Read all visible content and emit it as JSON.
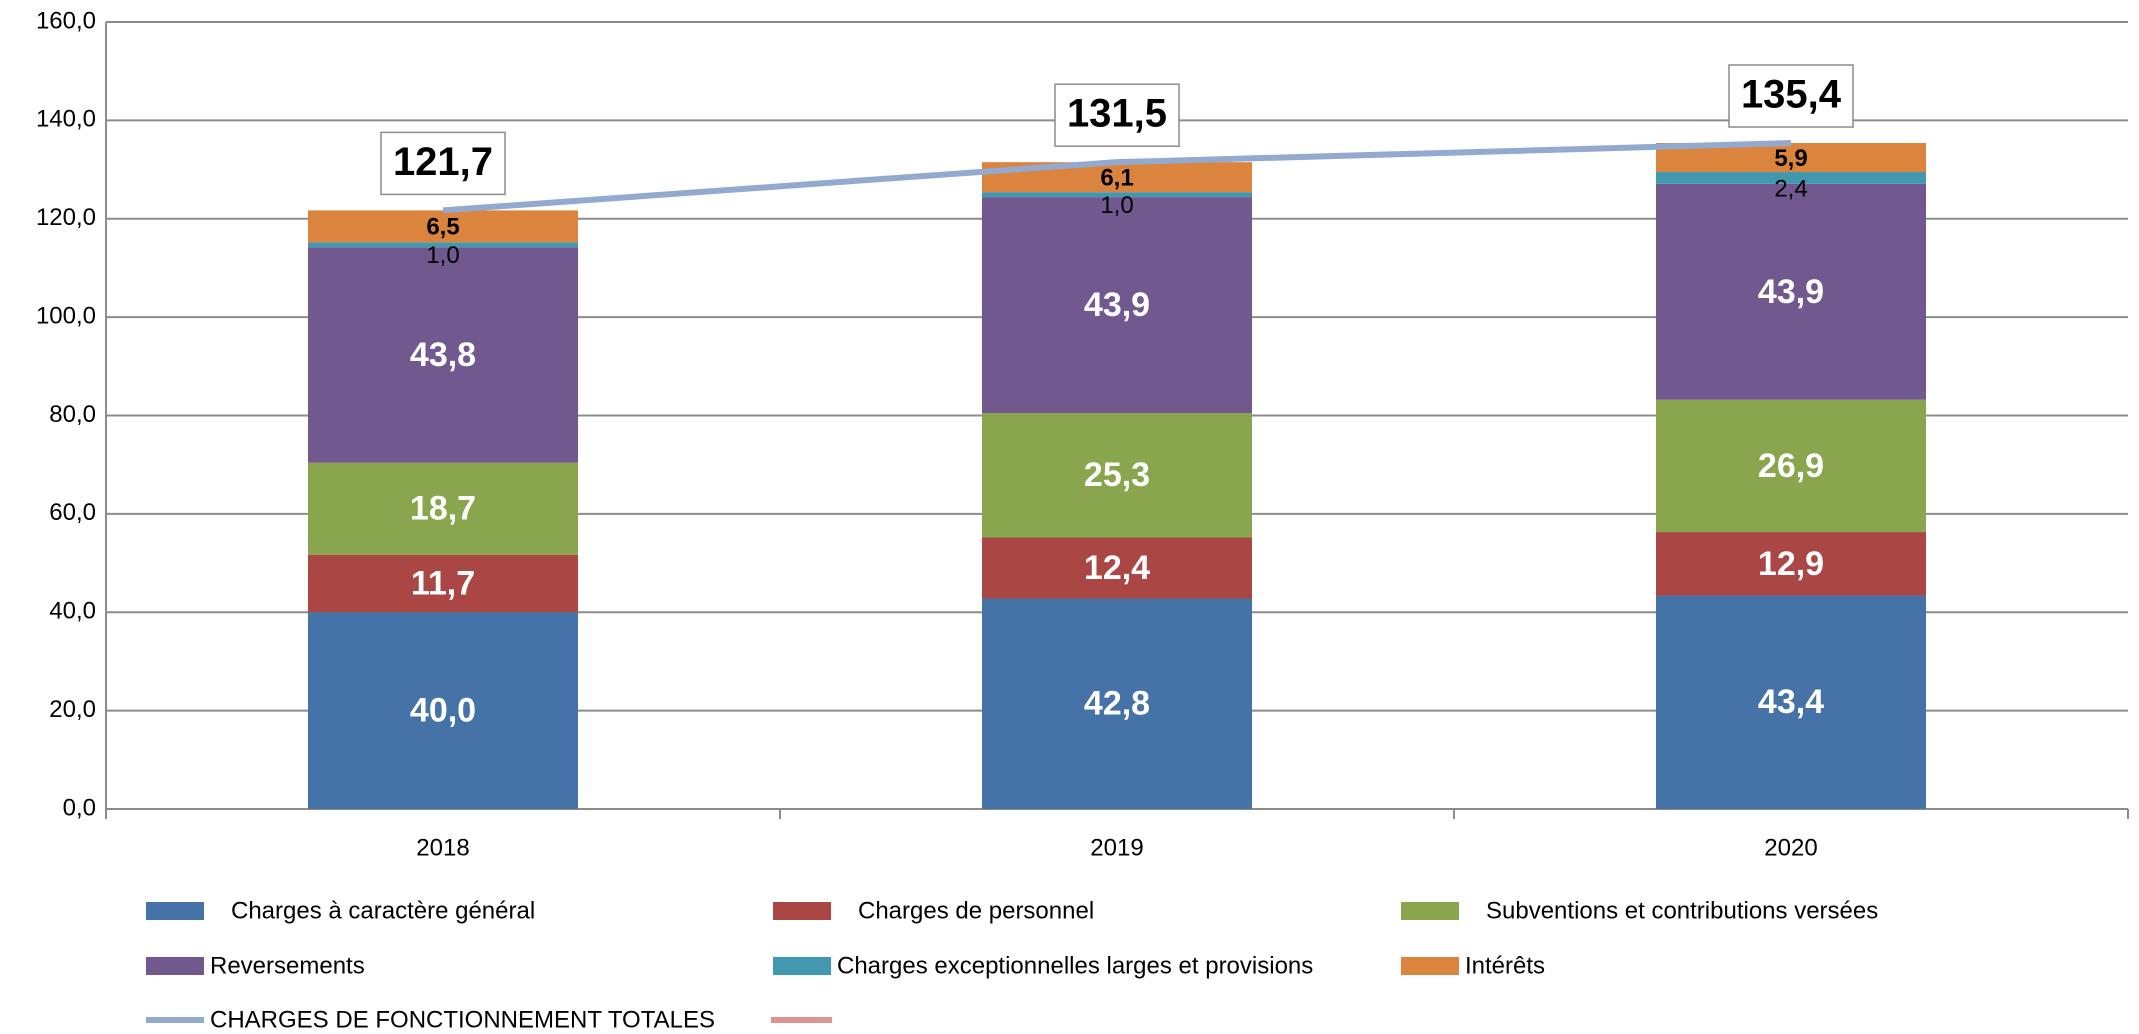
{
  "chart_data": {
    "type": "stacked_bar_line",
    "categories": [
      "2018",
      "2019",
      "2020"
    ],
    "series": [
      {
        "name": "Charges à caractère général",
        "color": "#4572a7",
        "values": [
          40.0,
          42.8,
          43.4
        ],
        "value_labels": [
          "40,0",
          "42,8",
          "43,4"
        ]
      },
      {
        "name": "Charges de personnel",
        "color": "#aa4643",
        "values": [
          11.7,
          12.4,
          12.9
        ],
        "value_labels": [
          "11,7",
          "12,4",
          "12,9"
        ]
      },
      {
        "name": "Subventions et contributions versées",
        "color": "#89a54e",
        "values": [
          18.7,
          25.3,
          26.9
        ],
        "value_labels": [
          "18,7",
          "25,3",
          "26,9"
        ]
      },
      {
        "name": "Reversements",
        "color": "#71588f",
        "values": [
          43.8,
          43.9,
          43.9
        ],
        "value_labels": [
          "43,8",
          "43,9",
          "43,9"
        ]
      },
      {
        "name": "Charges exceptionnelles larges et provisions",
        "color": "#4198af",
        "values": [
          1.0,
          1.0,
          2.4
        ],
        "value_labels": [
          "1,0",
          "1,0",
          "2,4"
        ]
      },
      {
        "name": "Intérêts",
        "color": "#db843d",
        "values": [
          6.5,
          6.1,
          5.9
        ],
        "value_labels": [
          "6,5",
          "6,1",
          "5,9"
        ]
      }
    ],
    "line": {
      "name": "CHARGES DE FONCTIONNEMENT TOTALES",
      "color": "#93a9cf",
      "values": [
        121.7,
        131.5,
        135.4
      ],
      "value_labels": [
        "121,7",
        "131,5",
        "135,4"
      ]
    },
    "ylim": [
      0,
      160
    ],
    "yticks": [
      {
        "value": 0,
        "label": "0,0"
      },
      {
        "value": 20,
        "label": "20,0"
      },
      {
        "value": 40,
        "label": "40,0"
      },
      {
        "value": 60,
        "label": "60,0"
      },
      {
        "value": 80,
        "label": "80,0"
      },
      {
        "value": 100,
        "label": "100,0"
      },
      {
        "value": 120,
        "label": "120,0"
      },
      {
        "value": 140,
        "label": "140,0"
      },
      {
        "value": 160,
        "label": "160,0"
      }
    ],
    "grid": true
  }
}
